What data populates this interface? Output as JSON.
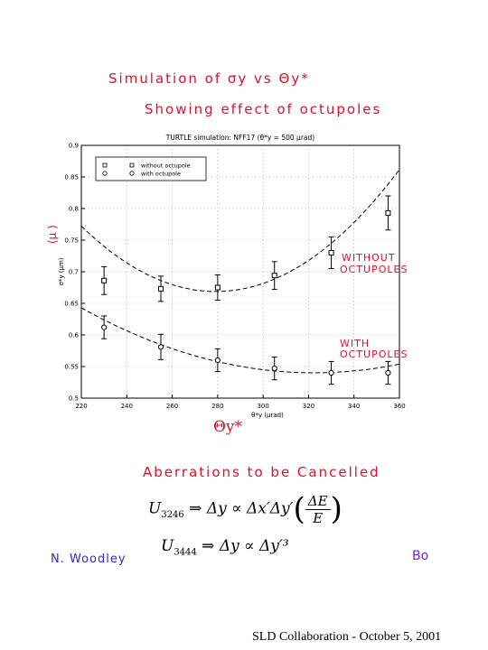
{
  "annotations": {
    "title_line1": "Simulation of σy vs Θy*",
    "title_line2": "Showing effect of octupoles",
    "without_label_1": "WITHOUT",
    "without_label_2": "OCTUPOLES",
    "with_label_1": "WITH",
    "with_label_2": "OCTUPOLES",
    "ylabel_handwritten": "(µ )",
    "xlabel_handwritten": "Θy*",
    "aberrations": "Aberrations to be Cancelled",
    "signature_left": "N. Woodley",
    "signature_right": "Bo"
  },
  "equations": {
    "eq1_lhs": "U",
    "eq1_sub": "3246",
    "eq1_mid": " ⇒ Δy ∝ Δx′Δy′",
    "eq1_num": "ΔE",
    "eq1_den": "E",
    "eq2_lhs": "U",
    "eq2_sub": "3444",
    "eq2_rhs": " ⇒ Δy ∝ Δy′³"
  },
  "footer": "SLD Collaboration - October 5, 2001",
  "chart_data": {
    "type": "scatter",
    "title": "TURTLE simulation: NFF17 (θ*y = 500 µrad)",
    "xlabel": "θ*y (µrad)",
    "ylabel": "σ*y (µm)",
    "xlim": [
      220,
      360
    ],
    "ylim": [
      0.5,
      0.9
    ],
    "xticks": [
      220,
      240,
      260,
      280,
      300,
      320,
      340,
      360
    ],
    "yticks": [
      0.5,
      0.55,
      0.6,
      0.65,
      0.7,
      0.75,
      0.8,
      0.85,
      0.9
    ],
    "ytick_labels": [
      "0.5",
      "0.55",
      "0.6",
      "0.65",
      "0.7",
      "0.75",
      "0.8",
      "0.85",
      "0.9"
    ],
    "grid": true,
    "legend_position": "top-left",
    "series": [
      {
        "name": "without octupole",
        "marker": "square",
        "x": [
          230,
          255,
          280,
          305,
          330,
          355
        ],
        "y": [
          0.686,
          0.673,
          0.675,
          0.694,
          0.73,
          0.793
        ],
        "err": [
          0.022,
          0.02,
          0.02,
          0.022,
          0.025,
          0.027
        ],
        "fit": [
          2.955e-05,
          -0.0165,
          2.972
        ]
      },
      {
        "name": "with octupole",
        "marker": "circle",
        "x": [
          230,
          255,
          280,
          305,
          330,
          355
        ],
        "y": [
          0.612,
          0.581,
          0.56,
          0.547,
          0.54,
          0.54
        ],
        "err": [
          0.018,
          0.02,
          0.018,
          0.018,
          0.018,
          0.018
        ],
        "fit": [
          9.8e-06,
          -0.00632,
          1.559
        ]
      }
    ]
  }
}
